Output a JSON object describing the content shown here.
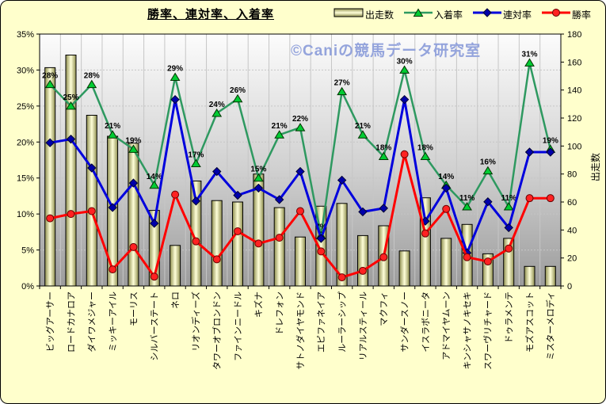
{
  "chart": {
    "watermark": "©Caniの競馬データ研究室"
  },
  "colors": {
    "background": "#FFFFCC",
    "plot_top": "#FCFCFC",
    "plot_mid": "#CFCFCF",
    "plot_bottom": "#9C9C9C",
    "grid": "#C6C6C6",
    "bar_edge_dark": "#8F8F4F",
    "bar_center_light": "#FFFFD9",
    "bar_outline": "#000000",
    "place_line": "#2E9960",
    "place_marker": "#00CC33",
    "quinella_line": "#0000DD",
    "quinella_marker": "#0000AA",
    "win_line": "#FF0000",
    "win_marker": "#FF2222",
    "axis": "#000000",
    "watermark": "#94A4DC"
  },
  "chart_data": {
    "type": "bar",
    "subtype": "bar+line combo",
    "title": "勝率、連対率、入着率",
    "legend_position": "top",
    "grid": true,
    "categories": [
      "ビッグアーサー",
      "ロードカナロア",
      "ダイワメジャー",
      "ミッキーアイル",
      "モーリス",
      "シルバーステート",
      "ネロ",
      "リオンディーズ",
      "タワーオブロンドン",
      "ファインニードル",
      "キズナ",
      "ドレフォン",
      "サトノダイヤモンド",
      "エピファネイア",
      "ルーラーシップ",
      "リアルスティール",
      "マクフィ",
      "サンダースノー",
      "イスラボニータ",
      "アドマイヤムーン",
      "キンシャサノキセキ",
      "スワーヴリチャード",
      "ドゥラメンテ",
      "モズアスコット",
      "ミスターメロディ"
    ],
    "series": [
      {
        "name": "出走数",
        "type": "bar",
        "axis": "right",
        "values": [
          156,
          165,
          122,
          107,
          102,
          54,
          29,
          75,
          61,
          60,
          80,
          56,
          35,
          57,
          59,
          36,
          43,
          25,
          63,
          34,
          44,
          23,
          34,
          14,
          14
        ]
      },
      {
        "name": "入着率",
        "type": "line",
        "marker": "triangle",
        "axis": "left",
        "data_labels": true,
        "values": [
          28,
          25,
          28,
          21,
          19,
          14,
          29,
          17,
          24,
          26,
          15,
          21,
          22,
          7,
          27,
          21,
          18,
          30,
          18,
          14,
          11,
          16,
          11,
          31,
          19
        ]
      },
      {
        "name": "連対率",
        "type": "line",
        "marker": "diamond",
        "axis": "left",
        "data_labels": false,
        "values": [
          19.9,
          20.4,
          16.4,
          10.9,
          14.3,
          8.7,
          25.9,
          11.8,
          15.9,
          12.6,
          13.6,
          12.0,
          15.9,
          6.6,
          14.7,
          10.3,
          10.8,
          25.9,
          9.0,
          13.6,
          4.6,
          11.7,
          8.1,
          18.6,
          18.6
        ]
      },
      {
        "name": "勝率",
        "type": "line",
        "marker": "circle",
        "axis": "left",
        "data_labels": false,
        "values": [
          9.4,
          10.0,
          10.4,
          2.3,
          5.4,
          1.3,
          12.7,
          6.2,
          3.7,
          7.6,
          5.9,
          6.7,
          10.4,
          4.8,
          1.2,
          2.1,
          4.0,
          18.3,
          7.3,
          10.7,
          4.0,
          3.4,
          5.2,
          12.2,
          12.2
        ]
      }
    ],
    "left_axis": {
      "min": 0,
      "max": 35,
      "ticks": [
        "35%",
        "30%",
        "25%",
        "20%",
        "15%",
        "10%",
        "5%",
        "0%"
      ]
    },
    "right_axis": {
      "title": "出走数",
      "min": 0,
      "max": 180,
      "ticks": [
        "180",
        "160",
        "140",
        "120",
        "100",
        "80",
        "60",
        "40",
        "20",
        "0"
      ]
    }
  }
}
